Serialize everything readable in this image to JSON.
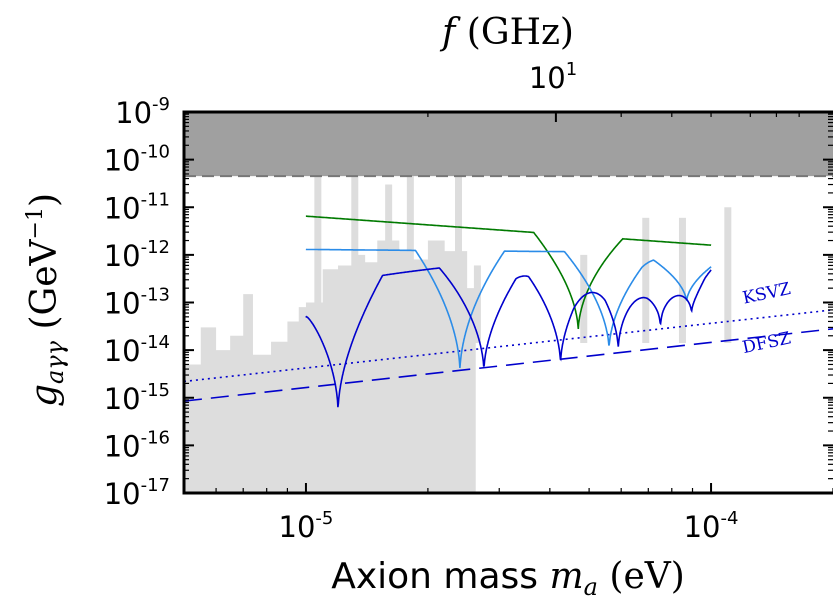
{
  "chart_data": {
    "type": "line",
    "x_scale": "log",
    "y_scale": "log",
    "xlim": [
      5e-06,
      0.0002
    ],
    "ylim": [
      1e-17,
      1e-09
    ],
    "xlabel": {
      "main": "Axion mass ",
      "var": "m",
      "sub": "a",
      "unit": " (eV)"
    },
    "ylabel": {
      "var": "g",
      "sub": "aγγ",
      "unit": " (GeV",
      "unit_sup": "−1",
      "unit_close": ")"
    },
    "top_label": {
      "var": "f",
      "unit": " (GHz)"
    },
    "top_tick": {
      "base": "10",
      "exp": "1"
    },
    "x_ticks": [
      {
        "value": 1e-05,
        "base": "10",
        "exp": "-5"
      },
      {
        "value": 0.0001,
        "base": "10",
        "exp": "-4"
      }
    ],
    "y_ticks": [
      {
        "value": 1e-09,
        "base": "10",
        "exp": "-9"
      },
      {
        "value": 1e-10,
        "base": "10",
        "exp": "-10"
      },
      {
        "value": 1e-11,
        "base": "10",
        "exp": "-11"
      },
      {
        "value": 1e-12,
        "base": "10",
        "exp": "-12"
      },
      {
        "value": 1e-13,
        "base": "10",
        "exp": "-13"
      },
      {
        "value": 1e-14,
        "base": "10",
        "exp": "-14"
      },
      {
        "value": 1e-15,
        "base": "10",
        "exp": "-15"
      },
      {
        "value": 1e-16,
        "base": "10",
        "exp": "-16"
      },
      {
        "value": 1e-17,
        "base": "10",
        "exp": "-17"
      }
    ],
    "excluded_band": {
      "y_from": 4.5e-11,
      "y_to": 1e-09,
      "color": "#a0a0a0",
      "boundary_color": "#777777"
    },
    "excluded_light": {
      "color": "#dddddd",
      "steps": [
        [
          5e-06,
          5e-15
        ],
        [
          5.5e-06,
          3e-14
        ],
        [
          6e-06,
          1e-14
        ],
        [
          6.5e-06,
          2e-14
        ],
        [
          7e-06,
          1.5e-13
        ],
        [
          7.4e-06,
          8e-15
        ],
        [
          8.2e-06,
          1.5e-14
        ],
        [
          9e-06,
          4e-14
        ],
        [
          9.6e-06,
          8e-14
        ],
        [
          1e-05,
          1e-13
        ],
        [
          1.1e-05,
          5e-13
        ],
        [
          1.2e-05,
          6e-13
        ],
        [
          1.3e-05,
          1e-12
        ],
        [
          1.4e-05,
          7e-13
        ],
        [
          1.5e-05,
          2e-12
        ],
        [
          1.7e-05,
          1.2e-12
        ],
        [
          1.8e-05,
          8e-13
        ],
        [
          2e-05,
          2e-12
        ],
        [
          2.2e-05,
          1.2e-12
        ],
        [
          2.5e-05,
          2e-13
        ]
      ],
      "spikes": [
        {
          "x": 1.07e-05,
          "y": 4.5e-11
        },
        {
          "x": 1.32e-05,
          "y": 4.5e-11
        },
        {
          "x": 1.6e-05,
          "y": 3e-11
        },
        {
          "x": 1.81e-05,
          "y": 4.5e-11
        },
        {
          "x": 2.05e-05,
          "y": 1.5e-12
        },
        {
          "x": 2.38e-05,
          "y": 4.5e-11
        },
        {
          "x": 2.65e-05,
          "y": 6e-13
        },
        {
          "x": 4.85e-05,
          "y": 1e-12
        },
        {
          "x": 6.9e-05,
          "y": 6e-12
        },
        {
          "x": 8.5e-05,
          "y": 6e-12
        },
        {
          "x": 0.00011,
          "y": 1e-11
        }
      ]
    },
    "series": [
      {
        "color": "#007a00",
        "envelope": {
          "x_from": 1e-05,
          "x_to": 0.0001,
          "y_from": 6.5e-12,
          "y_to": 1.6e-12,
          "peak": 1.75e-12
        },
        "minima": [
          {
            "x": 4.7e-05,
            "y": 2.5e-14
          }
        ]
      },
      {
        "color": "#2b8ce8",
        "envelope": {
          "x_from": 1e-05,
          "x_to": 0.0001,
          "y_from": 1.3e-12,
          "y_to": 1.1e-12,
          "peak": 2.1e-12
        },
        "minima": [
          {
            "x": 2.4e-05,
            "y": 3.5e-15
          },
          {
            "x": 5.6e-05,
            "y": 1e-14
          },
          {
            "x": 8.7e-05,
            "y": 1e-13
          }
        ]
      },
      {
        "color": "#0000cc",
        "envelope": {
          "x_from": 1e-05,
          "x_to": 0.0001,
          "y_from": 1.2e-13,
          "y_to": 1.6e-12,
          "peak": 1.6e-12
        },
        "minima": [
          {
            "x": 1.2e-05,
            "y": 5e-16
          },
          {
            "x": 2.75e-05,
            "y": 3.5e-15
          },
          {
            "x": 4.25e-05,
            "y": 5e-15
          },
          {
            "x": 5.9e-05,
            "y": 1e-14
          },
          {
            "x": 7.5e-05,
            "y": 3e-14
          },
          {
            "x": 8.95e-05,
            "y": 6e-14
          }
        ]
      }
    ],
    "models": [
      {
        "name": "KSVZ",
        "style": "dotted",
        "color": "#0000cc",
        "x": [
          5e-06,
          0.0002
        ],
        "y": [
          2.2e-15,
          7e-14
        ],
        "label_at": [
          0.000138,
          1.2e-13
        ]
      },
      {
        "name": "DFSZ",
        "style": "dashed",
        "color": "#0000cc",
        "x": [
          5e-06,
          0.0002
        ],
        "y": [
          8.5e-16,
          2.8e-14
        ],
        "label_at": [
          0.000138,
          1.1e-14
        ]
      }
    ]
  }
}
